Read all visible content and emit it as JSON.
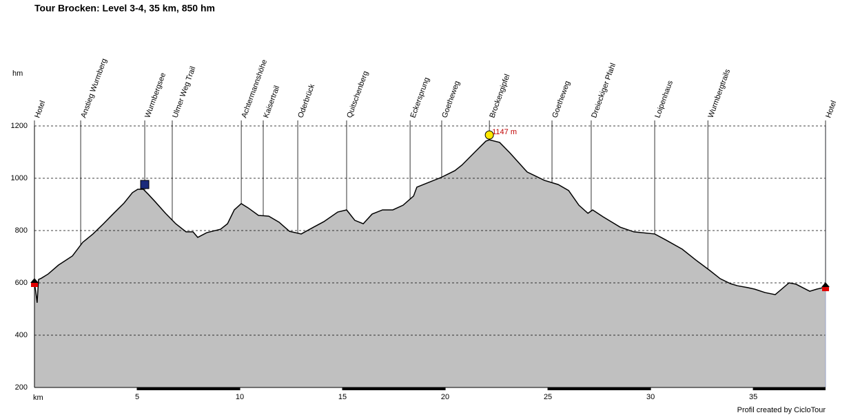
{
  "chart_data": {
    "type": "area",
    "title": "Tour Brocken: Level 3-4, 35 km, 850 hm",
    "y_label": "hm",
    "x_label": "km",
    "footer": "Profil created by CicloTour",
    "x": [
      0,
      0.07,
      0.13,
      0.2,
      0.34,
      0.67,
      1.17,
      1.85,
      2.35,
      2.85,
      3.36,
      3.86,
      4.36,
      4.77,
      5.03,
      5.3,
      5.54,
      5.87,
      6.38,
      6.88,
      7.38,
      7.72,
      7.95,
      8.39,
      9.06,
      9.4,
      9.73,
      10.07,
      10.4,
      10.91,
      11.41,
      11.91,
      12.42,
      12.99,
      13.59,
      14.09,
      14.77,
      15.2,
      15.6,
      16.01,
      16.44,
      16.95,
      17.45,
      17.95,
      18.46,
      18.62,
      19.13,
      19.8,
      20.47,
      20.81,
      21.48,
      21.98,
      22.15,
      22.65,
      23.15,
      23.99,
      24.83,
      25.5,
      26.01,
      26.51,
      26.95,
      27.18,
      27.68,
      28.52,
      29.19,
      30.2,
      30.7,
      31.54,
      32.21,
      32.89,
      33.39,
      33.89,
      34.23,
      34.73,
      35.07,
      35.57,
      36.07,
      36.74,
      37.08,
      37.75,
      38.09,
      38.52
    ],
    "series": [
      {
        "color": "#c0c0c0",
        "values": [
          600,
          563,
          524,
          613,
          618,
          634,
          668,
          703,
          755,
          787,
          826,
          866,
          905,
          945,
          958,
          958,
          939,
          911,
          866,
          826,
          795,
          795,
          774,
          792,
          805,
          826,
          879,
          903,
          887,
          858,
          855,
          832,
          797,
          787,
          813,
          834,
          871,
          879,
          839,
          826,
          863,
          879,
          879,
          897,
          932,
          966,
          982,
          1003,
          1029,
          1050,
          1103,
          1142,
          1147,
          1137,
          1097,
          1024,
          992,
          976,
          953,
          897,
          866,
          879,
          853,
          813,
          795,
          787,
          766,
          729,
          687,
          647,
          616,
          597,
          589,
          582,
          576,
          563,
          555,
          600,
          595,
          568,
          576,
          584
        ]
      }
    ],
    "xlim": [
      0,
      38.52
    ],
    "ylim": [
      200,
      1200
    ],
    "xticks": [
      5,
      10,
      15,
      20,
      25,
      30,
      35
    ],
    "yticks": [
      200,
      400,
      600,
      800,
      1000,
      1200
    ],
    "grid": true,
    "peak": {
      "x": 22.15,
      "value": 1147,
      "label": "1147 m"
    },
    "waypoints": [
      {
        "x": 0,
        "label": "Hotel"
      },
      {
        "x": 2.25,
        "label": "Anstieg Wurmberg"
      },
      {
        "x": 5.37,
        "label": "Wurmbergsee"
      },
      {
        "x": 6.71,
        "label": "Ulmer Weg Trail"
      },
      {
        "x": 10.07,
        "label": "Achtermannshöhe"
      },
      {
        "x": 11.14,
        "label": "Kaisertrail"
      },
      {
        "x": 12.82,
        "label": "Oderbrück"
      },
      {
        "x": 15.2,
        "label": "Quitschenberg"
      },
      {
        "x": 18.29,
        "label": "Eckersprung"
      },
      {
        "x": 19.83,
        "label": "Goetheweg"
      },
      {
        "x": 22.15,
        "label": "Brockengipfel"
      },
      {
        "x": 25.2,
        "label": "Goetheweg"
      },
      {
        "x": 27.11,
        "label": "Dreieckiger Pfahl"
      },
      {
        "x": 30.2,
        "label": "Loipenhaus"
      },
      {
        "x": 32.79,
        "label": "Wurmbergtrails"
      },
      {
        "x": 38.52,
        "label": "Hotel"
      }
    ]
  }
}
